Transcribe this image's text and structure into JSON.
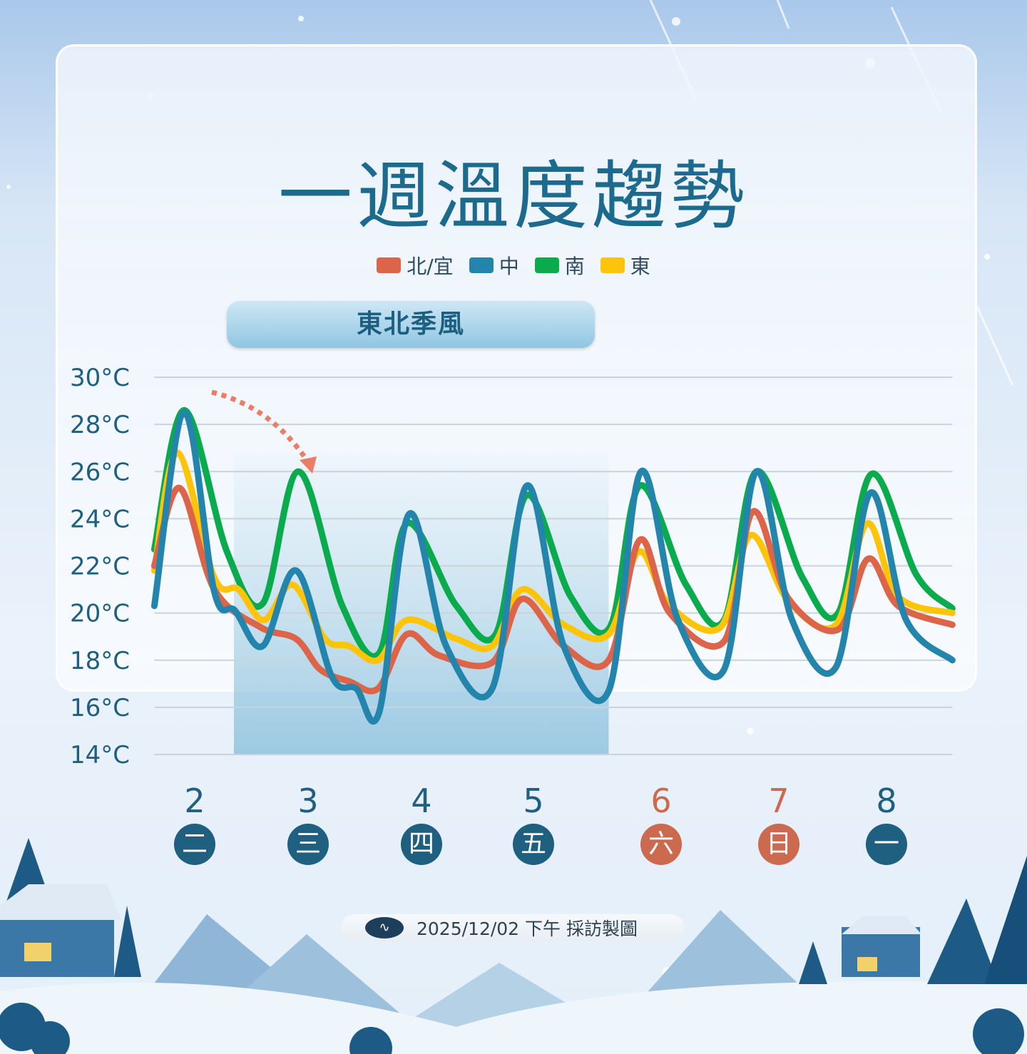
{
  "title": "一週溫度趨勢",
  "legend": [
    {
      "label": "北/宜",
      "color": "#dc6448"
    },
    {
      "label": "中",
      "color": "#2485ac"
    },
    {
      "label": "南",
      "color": "#0aab4c"
    },
    {
      "label": "東",
      "color": "#fec40a"
    }
  ],
  "annotation": {
    "label": "東北季風",
    "day_range": [
      2.34,
      5.59
    ],
    "arrow": "dotted arrow from day 2 peak to day 3 peak"
  },
  "days": [
    {
      "num": "2",
      "weekday": "二",
      "weekend": false
    },
    {
      "num": "3",
      "weekday": "三",
      "weekend": false
    },
    {
      "num": "4",
      "weekday": "四",
      "weekend": false
    },
    {
      "num": "5",
      "weekday": "五",
      "weekend": false
    },
    {
      "num": "6",
      "weekday": "六",
      "weekend": true
    },
    {
      "num": "7",
      "weekday": "日",
      "weekend": true
    },
    {
      "num": "8",
      "weekday": "一",
      "weekend": false
    }
  ],
  "colors": {
    "weekday": "#1f5f80",
    "weekend": "#cc6a50",
    "title": "#1c6a8e",
    "shade": "#9fcbe2"
  },
  "footer": {
    "text": "2025/12/02 下午 採訪製圖",
    "logo": "weather-bureau-logo"
  },
  "chart_data": {
    "type": "line",
    "xlabel": "",
    "ylabel": "",
    "xlim": [
      1.65,
      8.57
    ],
    "ylim": [
      14,
      30
    ],
    "yticks": [
      "30°C",
      "28°C",
      "26°C",
      "24°C",
      "22°C",
      "20°C",
      "18°C",
      "16°C",
      "14°C"
    ],
    "ytick_values": [
      30,
      28,
      26,
      24,
      22,
      20,
      18,
      16,
      14
    ],
    "xticks": [
      2,
      3,
      4,
      5,
      6,
      7,
      8
    ],
    "grid": true,
    "legend_position": "top",
    "series": [
      {
        "name": "南",
        "color": "#0aab4c",
        "points": [
          [
            1.65,
            22.7
          ],
          [
            1.91,
            28.6
          ],
          [
            2.28,
            22.6
          ],
          [
            2.59,
            20.4
          ],
          [
            2.9,
            26.0
          ],
          [
            3.28,
            20.3
          ],
          [
            3.6,
            18.3
          ],
          [
            3.84,
            23.8
          ],
          [
            4.27,
            20.3
          ],
          [
            4.61,
            19.1
          ],
          [
            4.88,
            25.0
          ],
          [
            5.26,
            20.7
          ],
          [
            5.6,
            19.4
          ],
          [
            5.86,
            25.4
          ],
          [
            6.26,
            21.2
          ],
          [
            6.59,
            19.7
          ],
          [
            6.87,
            26.0
          ],
          [
            7.27,
            21.5
          ],
          [
            7.58,
            20.0
          ],
          [
            7.87,
            25.9
          ],
          [
            8.26,
            21.6
          ],
          [
            8.57,
            20.2
          ]
        ]
      },
      {
        "name": "東",
        "color": "#fec40a",
        "points": [
          [
            1.65,
            21.8
          ],
          [
            1.85,
            26.8
          ],
          [
            2.17,
            21.5
          ],
          [
            2.38,
            21.0
          ],
          [
            2.6,
            19.7
          ],
          [
            2.85,
            21.2
          ],
          [
            3.13,
            18.9
          ],
          [
            3.34,
            18.6
          ],
          [
            3.59,
            18.0
          ],
          [
            3.84,
            19.7
          ],
          [
            4.27,
            18.9
          ],
          [
            4.58,
            18.6
          ],
          [
            4.84,
            21.0
          ],
          [
            5.2,
            19.5
          ],
          [
            5.59,
            19.1
          ],
          [
            5.85,
            22.6
          ],
          [
            6.12,
            20.3
          ],
          [
            6.56,
            19.4
          ],
          [
            6.82,
            23.3
          ],
          [
            7.15,
            20.5
          ],
          [
            7.56,
            19.5
          ],
          [
            7.83,
            23.8
          ],
          [
            8.1,
            20.7
          ],
          [
            8.57,
            20.0
          ]
        ]
      },
      {
        "name": "北/宜",
        "color": "#dc6448",
        "points": [
          [
            1.65,
            22.0
          ],
          [
            1.87,
            25.3
          ],
          [
            2.17,
            21.0
          ],
          [
            2.57,
            19.4
          ],
          [
            2.88,
            18.9
          ],
          [
            3.09,
            17.6
          ],
          [
            3.34,
            17.1
          ],
          [
            3.59,
            16.8
          ],
          [
            3.84,
            19.1
          ],
          [
            4.12,
            18.2
          ],
          [
            4.58,
            17.9
          ],
          [
            4.84,
            20.6
          ],
          [
            5.2,
            18.6
          ],
          [
            5.59,
            18.0
          ],
          [
            5.86,
            23.1
          ],
          [
            6.12,
            20.0
          ],
          [
            6.59,
            18.8
          ],
          [
            6.84,
            24.3
          ],
          [
            7.15,
            20.6
          ],
          [
            7.58,
            19.3
          ],
          [
            7.84,
            22.3
          ],
          [
            8.1,
            20.3
          ],
          [
            8.57,
            19.5
          ]
        ]
      },
      {
        "name": "中",
        "color": "#2485ac",
        "points": [
          [
            1.65,
            20.3
          ],
          [
            1.91,
            28.5
          ],
          [
            2.17,
            20.9
          ],
          [
            2.35,
            20.1
          ],
          [
            2.59,
            18.6
          ],
          [
            2.88,
            21.8
          ],
          [
            3.19,
            17.3
          ],
          [
            3.4,
            16.8
          ],
          [
            3.6,
            15.8
          ],
          [
            3.86,
            24.2
          ],
          [
            4.18,
            18.6
          ],
          [
            4.58,
            16.8
          ],
          [
            4.88,
            25.4
          ],
          [
            5.2,
            18.6
          ],
          [
            5.59,
            16.7
          ],
          [
            5.87,
            26.0
          ],
          [
            6.19,
            19.7
          ],
          [
            6.59,
            17.6
          ],
          [
            6.87,
            26.0
          ],
          [
            7.18,
            19.7
          ],
          [
            7.56,
            17.7
          ],
          [
            7.86,
            25.1
          ],
          [
            8.17,
            19.7
          ],
          [
            8.57,
            18.0
          ]
        ]
      }
    ]
  }
}
